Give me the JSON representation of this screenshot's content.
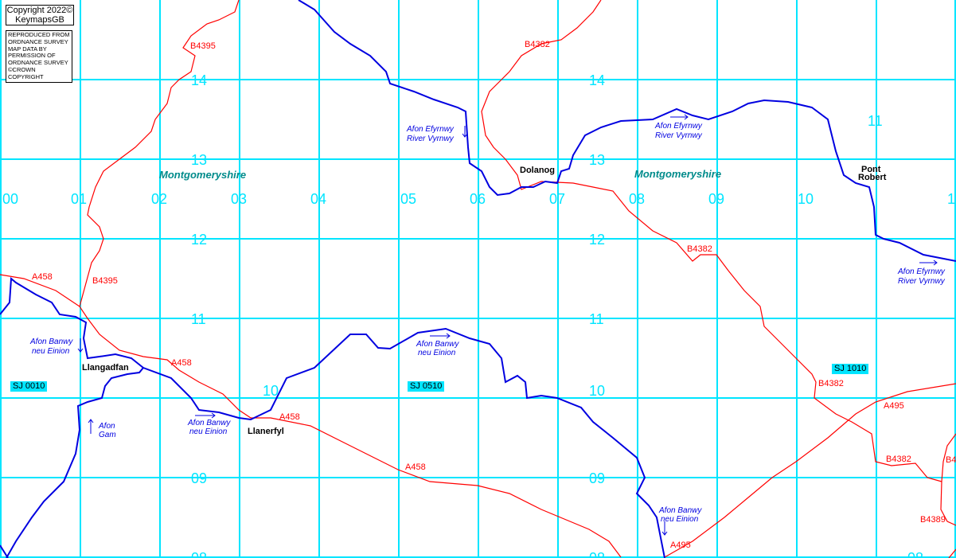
{
  "copyright": {
    "line1": "Copyright 2022©",
    "line2": "KeymapsGB"
  },
  "os_notice": [
    "REPRODUCED FROM",
    "ORDNANCE SURVEY",
    "MAP DATA BY",
    "PERMISSION OF",
    "ORDNANCE SURVEY",
    "©CROWN COPYRIGHT"
  ],
  "eastings": [
    "00",
    "01",
    "02",
    "03",
    "04",
    "05",
    "06",
    "07",
    "08",
    "09",
    "10",
    "1"
  ],
  "northings_left": [
    "14",
    "13",
    "12",
    "11",
    "10",
    "09",
    "08"
  ],
  "northings_right": [
    "14",
    "13",
    "12",
    "11",
    "10",
    "09",
    "08"
  ],
  "grid_refs": [
    "SJ 0010",
    "SJ 0510",
    "SJ 1010"
  ],
  "counties": [
    "Montgomeryshire",
    "Montgomeryshire"
  ],
  "places": {
    "llangadfan": "Llangadfan",
    "llanerfyl": "Llanerfyl",
    "dolanog": "Dolanog",
    "pont_robert_1": "Pont",
    "pont_robert_2": "Robert"
  },
  "roads": [
    "B4395",
    "B4395",
    "A458",
    "A458",
    "A458",
    "A458",
    "B4382",
    "B4382",
    "B4382",
    "B4382",
    "A495",
    "A495",
    "B4389",
    "B4"
  ],
  "rivers": {
    "efyrnwy_welsh": "Afon Efyrnwy",
    "efyrnwy_english": "River Vyrnwy",
    "banwy_1": "Afon Banwy",
    "banwy_2": "neu Einion",
    "gam_1": "Afon",
    "gam_2": "Gam"
  },
  "colors": {
    "grid": "#00e5ff",
    "road": "#ff0000",
    "river": "#0000e0",
    "county": "#008b8b"
  }
}
